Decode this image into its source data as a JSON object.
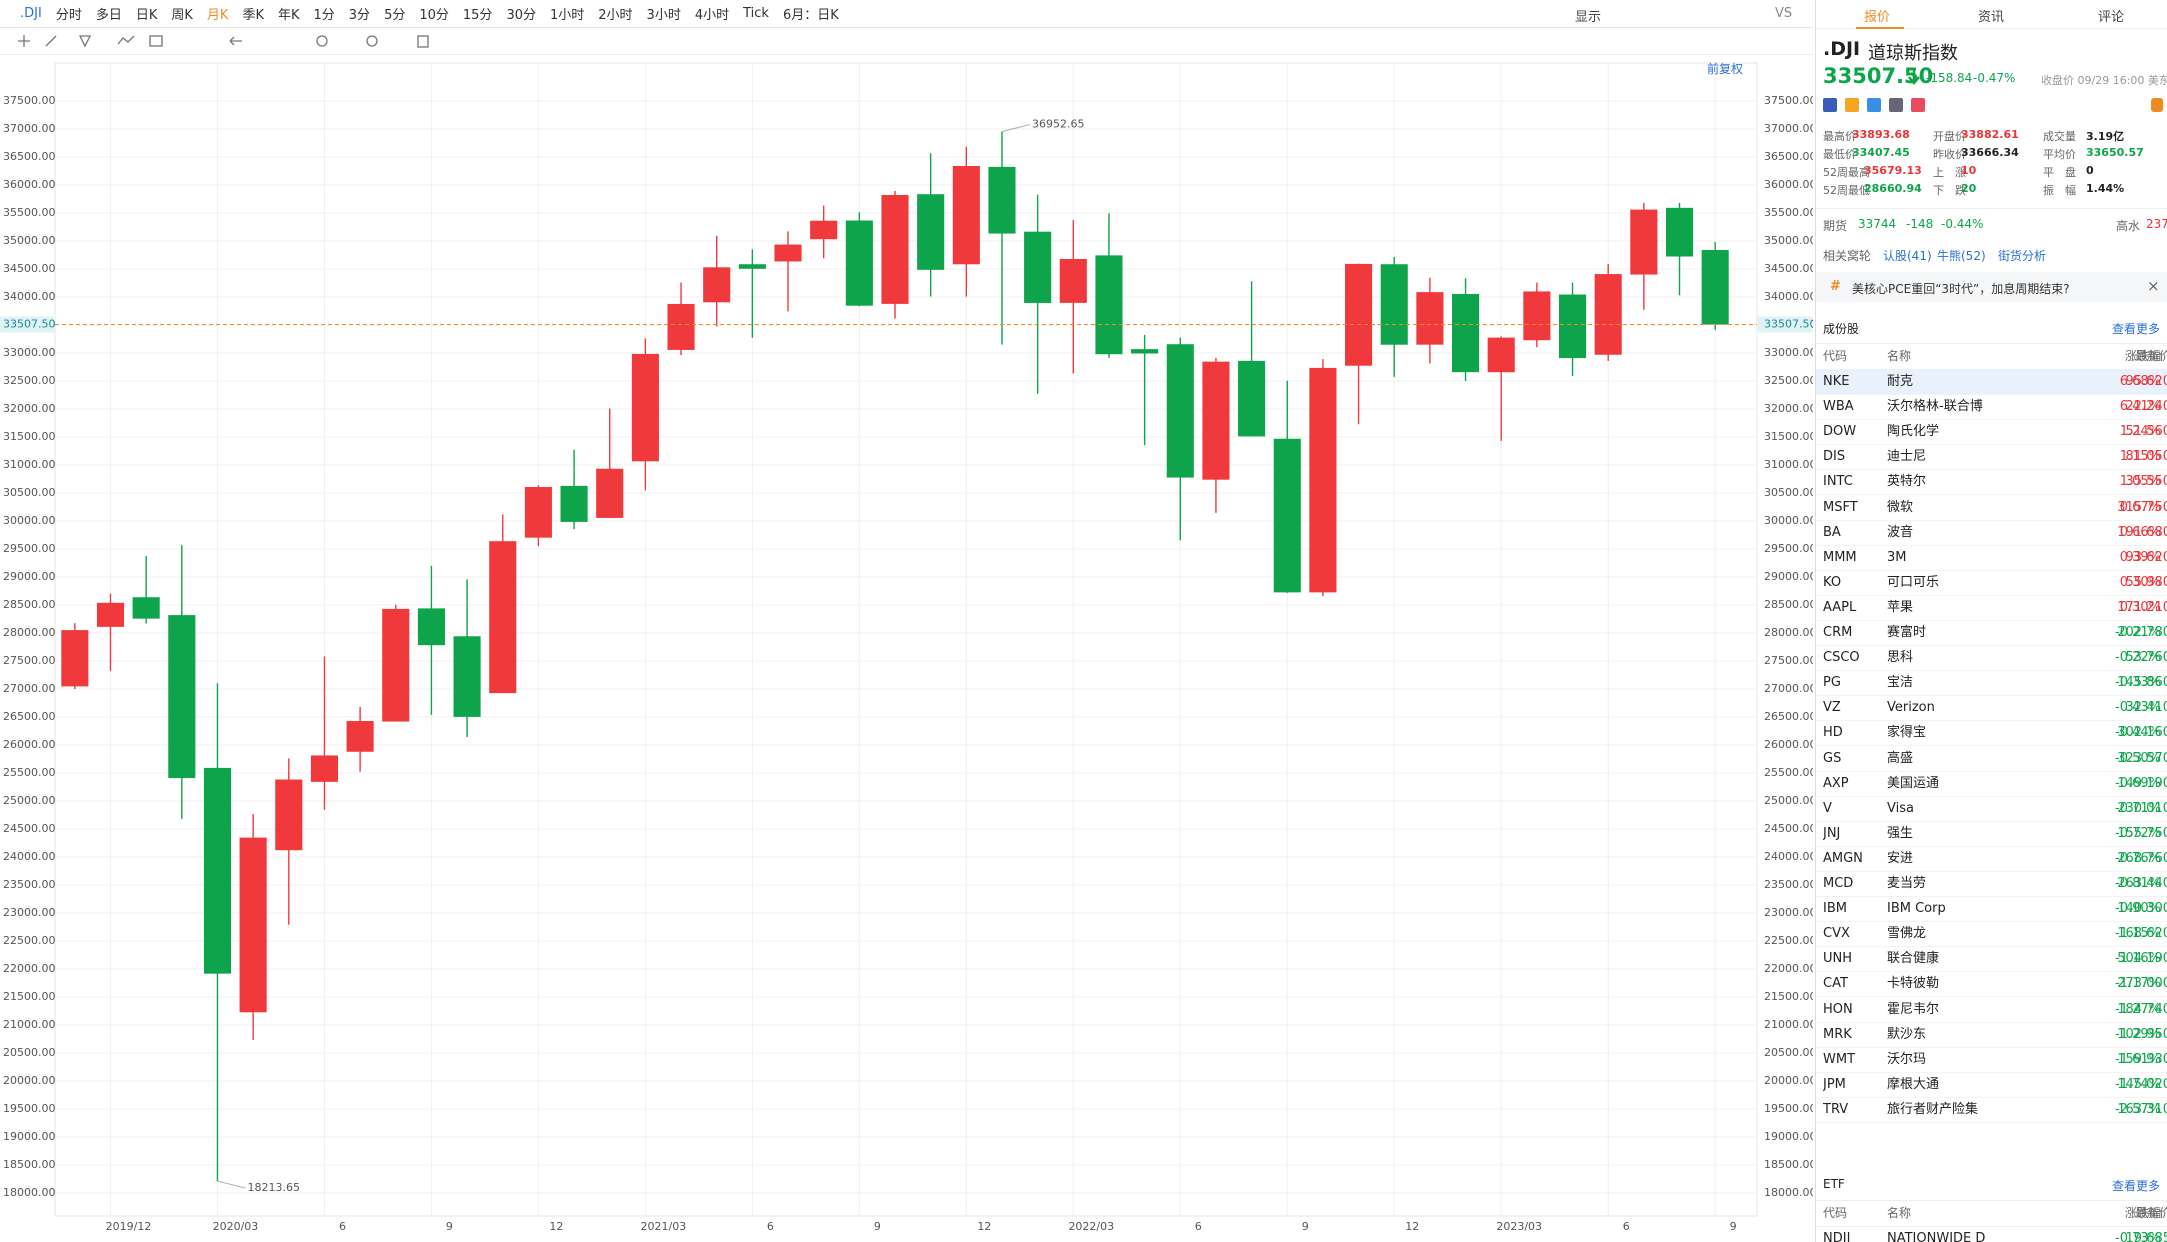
{
  "toolbar": {
    "symbol": ".DJI",
    "periods": [
      "分时",
      "多日",
      "日K",
      "周K",
      "月K",
      "季K",
      "年K",
      "1分",
      "3分",
      "5分",
      "10分",
      "15分",
      "30分",
      "1小时",
      "2小时",
      "3小时",
      "4小时",
      "Tick",
      "6月：日K"
    ],
    "display": "显示",
    "vs": "VS",
    "adjust": "前复权"
  },
  "chart_data": {
    "type": "candlestick",
    "up_color": "#f0393d",
    "down_color": "#0ea44b",
    "categories": [
      null,
      "2019/12",
      null,
      null,
      "2020/03",
      null,
      null,
      "6",
      null,
      null,
      "9",
      null,
      null,
      "12",
      null,
      null,
      "2021/03",
      null,
      null,
      "6",
      null,
      null,
      "9",
      null,
      null,
      "12",
      null,
      null,
      "2022/03",
      null,
      null,
      "6",
      null,
      null,
      "9",
      null,
      null,
      "12",
      null,
      null,
      "2023/03",
      null,
      null,
      "6",
      null,
      null,
      "9"
    ],
    "open": [
      27046,
      28109,
      28638,
      28319,
      25591,
      21227,
      24121,
      25342,
      25879,
      26419,
      28439,
      27941,
      26926,
      29702,
      30627,
      30054,
      31065,
      33054,
      33904,
      34584,
      34634,
      35031,
      35365,
      33876,
      35834,
      34583,
      36322,
      35165,
      33894,
      34742,
      33068,
      33156,
      30737,
      32858,
      31468,
      28725,
      32772,
      34584,
      33148,
      34052,
      32656,
      33227,
      34043,
      32968,
      34400,
      35591,
      34838
    ],
    "high": [
      28175,
      28702,
      29374,
      29568,
      27102,
      24765,
      25758,
      27581,
      26680,
      28502,
      29199,
      28958,
      30116,
      30637,
      31272,
      32009,
      33259,
      34257,
      35092,
      34849,
      35172,
      35631,
      35510,
      35893,
      36566,
      36680,
      36952.65,
      35824,
      35372,
      35492,
      33321,
      33273,
      32911,
      34281,
      32504,
      32889,
      34595,
      34712,
      34342,
      34335,
      33295,
      34257,
      34257,
      34589,
      35679,
      35679,
      34979
    ],
    "low": [
      27000,
      27325,
      28170,
      24681,
      18213.65,
      20735,
      22790,
      24843,
      25523,
      26419,
      26538,
      26143,
      26926,
      29551,
      29856,
      30054,
      30547,
      32962,
      33474,
      33272,
      33741,
      34690,
      33833,
      33613,
      34006,
      34006,
      33150,
      32272,
      32632,
      32913,
      31354,
      29653,
      30144,
      31510,
      28715,
      28660,
      31727,
      32573,
      32812,
      32500,
      31430,
      33102,
      32586,
      32858,
      33770,
      34029,
      33413
    ],
    "close": [
      28051,
      28538,
      28256,
      25409,
      21917,
      24346,
      25383,
      25813,
      26428,
      28430,
      27782,
      26502,
      29639,
      30606,
      29983,
      30932,
      32982,
      33875,
      34529,
      34503,
      34935,
      35361,
      33844,
      35820,
      34484,
      36338,
      35132,
      33893,
      34678,
      32977,
      32990,
      30775,
      32845,
      31510,
      28725,
      32733,
      34590,
      33147,
      34086,
      32657,
      33274,
      34098,
      32908,
      34408,
      35560,
      34722,
      33507.5
    ],
    "ylim": [
      17590,
      37820
    ],
    "yticks": [
      {
        "value": 18000,
        "label": "18000.00"
      },
      {
        "value": 18500,
        "label": "18500.00"
      },
      {
        "value": 19000,
        "label": "19000.00"
      },
      {
        "value": 19500,
        "label": "19500.00"
      },
      {
        "value": 20000,
        "label": "20000.00"
      },
      {
        "value": 20500,
        "label": "20500.00"
      },
      {
        "value": 21000,
        "label": "21000.00"
      },
      {
        "value": 21500,
        "label": "21500.00"
      },
      {
        "value": 22000,
        "label": "22000.00"
      },
      {
        "value": 22500,
        "label": "22500.00"
      },
      {
        "value": 23000,
        "label": "23000.00"
      },
      {
        "value": 23500,
        "label": "23500.00"
      },
      {
        "value": 24000,
        "label": "24000.00"
      },
      {
        "value": 24500,
        "label": "24500.00"
      },
      {
        "value": 25000,
        "label": "25000.00"
      },
      {
        "value": 25500,
        "label": "25500.00"
      },
      {
        "value": 26000,
        "label": "26000.00"
      },
      {
        "value": 26500,
        "label": "26500.00"
      },
      {
        "value": 27000,
        "label": "27000.00"
      },
      {
        "value": 27500,
        "label": "27500.00"
      },
      {
        "value": 28000,
        "label": "28000.00"
      },
      {
        "value": 28500,
        "label": "28500.00"
      },
      {
        "value": 29000,
        "label": "29000.00"
      },
      {
        "value": 29500,
        "label": "29500.00"
      },
      {
        "value": 30000,
        "label": "30000.00"
      },
      {
        "value": 30500,
        "label": "30500.00"
      },
      {
        "value": 31000,
        "label": "31000.00"
      },
      {
        "value": 31500,
        "label": "31500.00"
      },
      {
        "value": 32000,
        "label": "32000.00"
      },
      {
        "value": 32500,
        "label": "32500.00"
      },
      {
        "value": 33000,
        "label": "33000.00"
      },
      {
        "value": 33500,
        "label": "33500.00"
      },
      {
        "value": 34000,
        "label": "34000.00"
      },
      {
        "value": 34500,
        "label": "34500.00"
      },
      {
        "value": 35000,
        "label": "35000.00"
      },
      {
        "value": 35500,
        "label": "35500.00"
      },
      {
        "value": 36000,
        "label": "36000.00"
      },
      {
        "value": 36500,
        "label": "36500.00"
      },
      {
        "value": 37000,
        "label": "37000.00"
      },
      {
        "value": 37500,
        "label": "37500.00"
      }
    ],
    "last_price": {
      "value": 33507.5,
      "label": "33507.50"
    },
    "grid": true
  },
  "panel": {
    "tabs": [
      "报价",
      "资讯",
      "评论"
    ],
    "symbol": ".DJI",
    "name": "道琼斯指数",
    "price": "33507.50",
    "change": "-158.84",
    "change_pct": "-0.47%",
    "time": "收盘价 09/29 16:00 美东",
    "stats": [
      {
        "label": "最高价",
        "value": "33893.68",
        "color": "#e8343a"
      },
      {
        "label": "开盘价",
        "value": "33882.61",
        "color": "#e8343a"
      },
      {
        "label": "成交量",
        "value": "3.19亿",
        "color": "#222"
      },
      {
        "label": "最低价",
        "value": "33407.45",
        "color": "#0ea44b"
      },
      {
        "label": "昨收价",
        "value": "33666.34",
        "color": "#222"
      },
      {
        "label": "平均价",
        "value": "33650.57",
        "color": "#0ea44b"
      },
      {
        "label": "52周最高",
        "value": "35679.13",
        "color": "#e8343a"
      },
      {
        "label": "上　涨",
        "value": "10",
        "color": "#e8343a"
      },
      {
        "label": "平　盘",
        "value": "0",
        "color": "#222"
      },
      {
        "label": "52周最低",
        "value": "28660.94",
        "color": "#0ea44b"
      },
      {
        "label": "下　跌",
        "value": "20",
        "color": "#0ea44b"
      },
      {
        "label": "振　幅",
        "value": "1.44%",
        "color": "#222"
      }
    ],
    "futures": {
      "label": "期货",
      "price": "33744",
      "change": "-148",
      "change_pct": "-0.44%",
      "basis_label": "高水",
      "basis": "237"
    },
    "warrants": {
      "label": "相关窝轮",
      "links": [
        "认股(41)",
        "牛熊(52)",
        "街货分析"
      ]
    },
    "news": "美核心PCE重回“3时代”，加息周期结束?",
    "stocks": {
      "title": "成份股",
      "more": "查看更多",
      "headers": [
        "代码",
        "名称",
        "最新价",
        "涨跌幅"
      ],
      "rows": [
        [
          "NKE",
          "耐克",
          "95.620",
          "6.68%"
        ],
        [
          "WBA",
          "沃尔格林-联合博",
          "22.240",
          "6.41%"
        ],
        [
          "DOW",
          "陶氏化学",
          "51.560",
          "1.24%"
        ],
        [
          "DIS",
          "迪士尼",
          "81.050",
          "1.15%"
        ],
        [
          "INTC",
          "英特尔",
          "35.550",
          "1.05%"
        ],
        [
          "MSFT",
          "微软",
          "315.750",
          "0.67%"
        ],
        [
          "BA",
          "波音",
          "191.680",
          "0.66%"
        ],
        [
          "MMM",
          "3M",
          "93.620",
          "0.39%"
        ],
        [
          "KO",
          "可口可乐",
          "55.980",
          "0.30%"
        ],
        [
          "AAPL",
          "苹果",
          "171.210",
          "0.30%"
        ],
        [
          "CRM",
          "赛富时",
          "202.780",
          "-0.21%"
        ],
        [
          "CSCO",
          "思科",
          "53.760",
          "-0.22%"
        ],
        [
          "PG",
          "宝洁",
          "145.860",
          "-0.33%"
        ],
        [
          "VZ",
          "Verizon",
          "32.410",
          "-0.43%"
        ],
        [
          "HD",
          "家得宝",
          "302.160",
          "-0.44%"
        ],
        [
          "GS",
          "高盛",
          "323.570",
          "-0.50%"
        ],
        [
          "AXP",
          "美国运通",
          "149.190",
          "-0.69%"
        ],
        [
          "V",
          "Visa",
          "230.010",
          "-0.71%"
        ],
        [
          "JNJ",
          "强生",
          "155.750",
          "-0.72%"
        ],
        [
          "AMGN",
          "安进",
          "268.760",
          "-0.76%"
        ],
        [
          "MCD",
          "麦当劳",
          "263.440",
          "-0.81%"
        ],
        [
          "IBM",
          "IBM Corp",
          "140.300",
          "-0.90%"
        ],
        [
          "CVX",
          "雪佛龙",
          "168.620",
          "-1.15%"
        ],
        [
          "UNH",
          "联合健康",
          "504.190",
          "-1.16%"
        ],
        [
          "CAT",
          "卡特彼勒",
          "273.000",
          "-1.17%"
        ],
        [
          "HON",
          "霍尼韦尔",
          "184.740",
          "-1.27%"
        ],
        [
          "MRK",
          "默沙东",
          "102.950",
          "-1.29%"
        ],
        [
          "WMT",
          "沃尔玛",
          "159.930",
          "-1.61%"
        ],
        [
          "JPM",
          "摩根大通",
          "145.020",
          "-1.74%"
        ],
        [
          "TRV",
          "旅行者财产险集",
          "163.310",
          "-2.57%"
        ]
      ]
    },
    "etf": {
      "title": "ETF",
      "more": "查看更多",
      "headers": [
        "代码",
        "名称",
        "最新价",
        "涨跌幅"
      ],
      "rows": [
        [
          "NDJI",
          "NATIONWIDE D",
          "19.685",
          "-0.73%"
        ]
      ]
    }
  }
}
